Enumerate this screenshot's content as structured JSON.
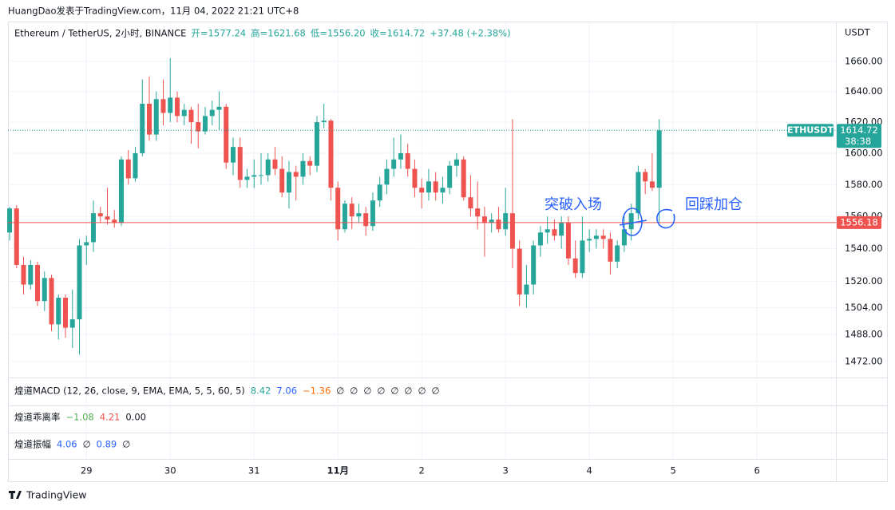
{
  "header": "HuangDao发表于TradingView.com，11月 04, 2022 21:21 UTC+8",
  "chart_data": {
    "type": "candlestick",
    "symbol_legend": [
      "Ethereum / TetherUS, 2小时, BINANCE",
      "开=1577.24",
      "高=1621.68",
      "低=1556.20",
      "收=1614.72",
      "+37.48 (+2.38%)"
    ],
    "currency": "USDT",
    "up_color": "#26a69a",
    "down_color": "#ef5350",
    "log_scale": true,
    "grid": true,
    "xlim": [
      -0.23,
      118.3
    ],
    "ylim": [
      1463,
      1685
    ],
    "yticks": [
      {
        "value": 1660,
        "label": "1660.00"
      },
      {
        "value": 1640,
        "label": "1640.00"
      },
      {
        "value": 1620,
        "label": "1620.00"
      },
      {
        "value": 1600,
        "label": "1600.00"
      },
      {
        "value": 1580,
        "label": "1580.00"
      },
      {
        "value": 1560,
        "label": "1560.00"
      },
      {
        "value": 1540,
        "label": "1540.00"
      },
      {
        "value": 1520,
        "label": "1520.00"
      },
      {
        "value": 1504,
        "label": "1504.00"
      },
      {
        "value": 1488,
        "label": "1488.00"
      },
      {
        "value": 1472,
        "label": "1472.00"
      }
    ],
    "xticks": [
      {
        "value": 11,
        "label": "29"
      },
      {
        "value": 23,
        "label": "30"
      },
      {
        "value": 35,
        "label": "31"
      },
      {
        "value": 47,
        "label": "11月"
      },
      {
        "value": 59,
        "label": "2"
      },
      {
        "value": 71,
        "label": "3"
      },
      {
        "value": 83,
        "label": "4"
      },
      {
        "value": 95,
        "label": "5"
      },
      {
        "value": 107,
        "label": "6"
      }
    ],
    "ohlc": [
      [
        1550,
        1566,
        1545,
        1565
      ],
      [
        1565,
        1567,
        1528,
        1530
      ],
      [
        1530,
        1535,
        1512,
        1518
      ],
      [
        1518,
        1533,
        1515,
        1530
      ],
      [
        1530,
        1532,
        1505,
        1508
      ],
      [
        1508,
        1526,
        1502,
        1522
      ],
      [
        1522,
        1524,
        1490,
        1494
      ],
      [
        1494,
        1512,
        1485,
        1510
      ],
      [
        1510,
        1512,
        1486,
        1492
      ],
      [
        1492,
        1515,
        1480,
        1497
      ],
      [
        1497,
        1546,
        1476,
        1542
      ],
      [
        1542,
        1548,
        1530,
        1544
      ],
      [
        1544,
        1570,
        1538,
        1562
      ],
      [
        1562,
        1566,
        1556,
        1560
      ],
      [
        1560,
        1578,
        1555,
        1558
      ],
      [
        1558,
        1564,
        1553,
        1556
      ],
      [
        1556,
        1598,
        1554,
        1596
      ],
      [
        1596,
        1602,
        1580,
        1584
      ],
      [
        1584,
        1604,
        1582,
        1600
      ],
      [
        1600,
        1648,
        1598,
        1632
      ],
      [
        1632,
        1650,
        1608,
        1612
      ],
      [
        1612,
        1640,
        1608,
        1635
      ],
      [
        1635,
        1648,
        1618,
        1626
      ],
      [
        1626,
        1662,
        1620,
        1636
      ],
      [
        1636,
        1640,
        1620,
        1624
      ],
      [
        1624,
        1632,
        1618,
        1628
      ],
      [
        1628,
        1630,
        1606,
        1620
      ],
      [
        1620,
        1632,
        1603,
        1614
      ],
      [
        1614,
        1630,
        1612,
        1624
      ],
      [
        1624,
        1634,
        1618,
        1628
      ],
      [
        1628,
        1640,
        1615,
        1630
      ],
      [
        1630,
        1632,
        1590,
        1594
      ],
      [
        1594,
        1610,
        1586,
        1604
      ],
      [
        1604,
        1610,
        1578,
        1583
      ],
      [
        1583,
        1590,
        1578,
        1585
      ],
      [
        1585,
        1596,
        1578,
        1586
      ],
      [
        1586,
        1600,
        1580,
        1586
      ],
      [
        1586,
        1600,
        1582,
        1596
      ],
      [
        1596,
        1604,
        1586,
        1590
      ],
      [
        1590,
        1598,
        1572,
        1575
      ],
      [
        1575,
        1595,
        1565,
        1588
      ],
      [
        1588,
        1592,
        1570,
        1585
      ],
      [
        1585,
        1600,
        1580,
        1595
      ],
      [
        1595,
        1598,
        1586,
        1592
      ],
      [
        1592,
        1624,
        1588,
        1620
      ],
      [
        1620,
        1632,
        1616,
        1621
      ],
      [
        1621,
        1622,
        1570,
        1578
      ],
      [
        1578,
        1582,
        1545,
        1552
      ],
      [
        1552,
        1570,
        1550,
        1568
      ],
      [
        1568,
        1572,
        1552,
        1560
      ],
      [
        1560,
        1568,
        1556,
        1562
      ],
      [
        1562,
        1566,
        1548,
        1554
      ],
      [
        1554,
        1575,
        1551,
        1570
      ],
      [
        1570,
        1585,
        1566,
        1580
      ],
      [
        1580,
        1596,
        1574,
        1590
      ],
      [
        1590,
        1610,
        1585,
        1596
      ],
      [
        1596,
        1612,
        1590,
        1600
      ],
      [
        1600,
        1606,
        1585,
        1590
      ],
      [
        1590,
        1596,
        1572,
        1578
      ],
      [
        1578,
        1584,
        1565,
        1575
      ],
      [
        1575,
        1590,
        1570,
        1582
      ],
      [
        1582,
        1588,
        1570,
        1575
      ],
      [
        1575,
        1585,
        1568,
        1578
      ],
      [
        1578,
        1595,
        1574,
        1592
      ],
      [
        1592,
        1600,
        1585,
        1596
      ],
      [
        1596,
        1598,
        1570,
        1572
      ],
      [
        1572,
        1586,
        1560,
        1565
      ],
      [
        1565,
        1582,
        1552,
        1560
      ],
      [
        1560,
        1566,
        1535,
        1556
      ],
      [
        1556,
        1562,
        1550,
        1558
      ],
      [
        1558,
        1566,
        1550,
        1552
      ],
      [
        1552,
        1578,
        1548,
        1562
      ],
      [
        1562,
        1622,
        1528,
        1540
      ],
      [
        1540,
        1545,
        1505,
        1512
      ],
      [
        1512,
        1530,
        1504,
        1518
      ],
      [
        1518,
        1545,
        1512,
        1542
      ],
      [
        1542,
        1554,
        1535,
        1550
      ],
      [
        1550,
        1560,
        1543,
        1552
      ],
      [
        1552,
        1558,
        1545,
        1548
      ],
      [
        1548,
        1560,
        1540,
        1556
      ],
      [
        1556,
        1560,
        1530,
        1534
      ],
      [
        1534,
        1545,
        1522,
        1525
      ],
      [
        1525,
        1560,
        1522,
        1545
      ],
      [
        1545,
        1552,
        1538,
        1546
      ],
      [
        1546,
        1552,
        1540,
        1548
      ],
      [
        1548,
        1552,
        1540,
        1546
      ],
      [
        1546,
        1550,
        1524,
        1532
      ],
      [
        1532,
        1545,
        1528,
        1542
      ],
      [
        1542,
        1560,
        1538,
        1552
      ],
      [
        1552,
        1568,
        1545,
        1562
      ],
      [
        1562,
        1592,
        1558,
        1588
      ],
      [
        1588,
        1590,
        1574,
        1582
      ],
      [
        1582,
        1600,
        1576,
        1578
      ],
      [
        1578,
        1622,
        1556,
        1614.72
      ]
    ],
    "last_price": {
      "value": 1614.72,
      "label": "1614.72",
      "countdown": "38:38",
      "symbol": "ETHUSDT"
    },
    "hline": {
      "value": 1556.18,
      "label": "1556.18"
    },
    "annotations": [
      "突破入场",
      "回踩加仓"
    ]
  },
  "indicators": [
    {
      "name": "煌道MACD (12, 26, close, 9, EMA, EMA, 5, 5, 60, 5)",
      "values": [
        "8.42",
        "7.06",
        "−1.36",
        "∅",
        "∅",
        "∅",
        "∅",
        "∅",
        "∅",
        "∅",
        "∅"
      ],
      "colors": [
        "#26a69a",
        "#2962ff",
        "#ff6d00",
        "#131722",
        "#131722",
        "#131722",
        "#131722",
        "#131722",
        "#131722",
        "#131722",
        "#131722"
      ]
    },
    {
      "name": "煌道乖离率",
      "values": [
        "−1.08",
        "4.21",
        "0.00"
      ],
      "colors": [
        "#4caf50",
        "#ef5350",
        "#131722"
      ]
    },
    {
      "name": "煌道振幅",
      "values": [
        "4.06",
        "∅",
        "0.89",
        "∅"
      ],
      "colors": [
        "#2962ff",
        "#131722",
        "#2962ff",
        "#131722"
      ]
    }
  ],
  "footer": "TradingView"
}
